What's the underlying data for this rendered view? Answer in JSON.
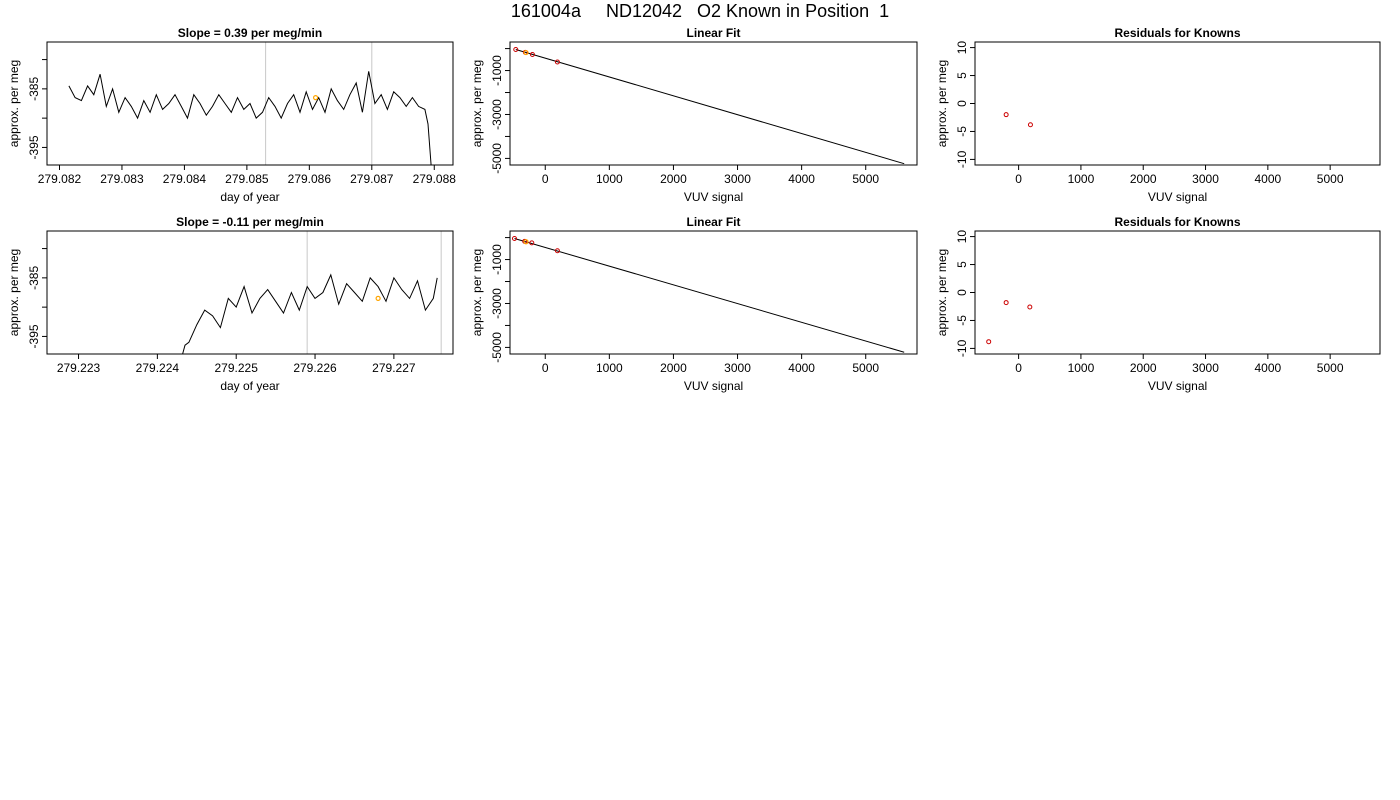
{
  "page": {
    "title": "161004a     ND12042   O2 Known in Position  1"
  },
  "colors": {
    "line": "#000000",
    "vline": "#c8c8c8",
    "point": "#cc0000",
    "accent": "#ffa500",
    "frame": "#000000"
  },
  "chart_data": [
    {
      "type": "line",
      "panel": "row1-timeseries",
      "title": "Slope =  0.39  per meg/min",
      "xlabel": "day of year",
      "ylabel": "approx. per meg",
      "xlim": [
        279.0818,
        279.0883
      ],
      "ylim": [
        -398,
        -377
      ],
      "xticks": [
        "279.082",
        "279.083",
        "279.084",
        "279.085",
        "279.086",
        "279.087",
        "279.088"
      ],
      "xtick_values": [
        279.082,
        279.083,
        279.084,
        279.085,
        279.086,
        279.087,
        279.088
      ],
      "yticks": [
        "-395",
        "-385"
      ],
      "ytick_values": [
        -395,
        -385
      ],
      "extra_y_ticks": [
        -380,
        -390
      ],
      "vlines": [
        279.0853,
        279.087
      ],
      "accent_point": {
        "x": 279.0861,
        "y": -386.5
      },
      "series": [
        {
          "x": [
            279.08215,
            279.08225,
            279.08235,
            279.08245,
            279.08255,
            279.08265,
            279.08275,
            279.08285,
            279.08295,
            279.08305,
            279.08315,
            279.08325,
            279.08335,
            279.08345,
            279.08355,
            279.08365,
            279.08375,
            279.08385,
            279.08395,
            279.08405,
            279.08415,
            279.08425,
            279.08435,
            279.08445,
            279.08455,
            279.08465,
            279.08475,
            279.08485,
            279.08495,
            279.08505,
            279.08515,
            279.08525,
            279.08535,
            279.08545,
            279.08555,
            279.08565,
            279.08575,
            279.08585,
            279.08595,
            279.08605,
            279.08615,
            279.08625,
            279.08635,
            279.08645,
            279.08655,
            279.08665,
            279.08675,
            279.08685,
            279.08695,
            279.08705,
            279.08715,
            279.08725,
            279.08735,
            279.08745,
            279.08755,
            279.08765,
            279.08775,
            279.08785,
            279.0879,
            279.08795
          ],
          "y": [
            -384.5,
            -386.5,
            -387,
            -384.5,
            -386,
            -382.5,
            -388,
            -385,
            -389,
            -386.5,
            -388,
            -390,
            -387,
            -389,
            -386,
            -388.5,
            -387.5,
            -386,
            -388,
            -390,
            -386,
            -387.5,
            -389.5,
            -388,
            -386,
            -387.5,
            -389,
            -386.5,
            -388.5,
            -387.5,
            -390,
            -389,
            -386.5,
            -388,
            -390,
            -387.5,
            -386,
            -389,
            -385.5,
            -388.5,
            -386.5,
            -389,
            -385,
            -387,
            -388.5,
            -386,
            -384,
            -389,
            -382,
            -387.5,
            -386,
            -388.5,
            -385.5,
            -386.5,
            -388,
            -386.5,
            -388,
            -388.5,
            -391,
            -398
          ]
        }
      ]
    },
    {
      "type": "scatter",
      "panel": "row1-linearfit",
      "title": "Linear Fit",
      "xlabel": "VUV signal",
      "ylabel": "approx. per meg",
      "xlim": [
        -550,
        5800
      ],
      "ylim": [
        -5300,
        300
      ],
      "xticks": [
        "0",
        "1000",
        "2000",
        "3000",
        "4000",
        "5000"
      ],
      "xtick_values": [
        0,
        1000,
        2000,
        3000,
        4000,
        5000
      ],
      "yticks": [
        "-5000",
        "-3000",
        "-1000"
      ],
      "ytick_values": [
        -5000,
        -3000,
        -1000
      ],
      "extra_y_ticks": [
        -4000,
        -2000,
        0
      ],
      "fit_line": {
        "x": [
          -460,
          5600
        ],
        "y": [
          -40,
          -5240
        ]
      },
      "points": {
        "x": [
          -460,
          -310,
          -200,
          190
        ],
        "y": [
          -40,
          -170,
          -270,
          -610
        ]
      },
      "accent_point": {
        "x": -300,
        "y": -180
      }
    },
    {
      "type": "scatter",
      "panel": "row1-residuals",
      "title": "Residuals for Knowns",
      "xlabel": "VUV signal",
      "ylabel": "approx. per meg",
      "xlim": [
        -700,
        5800
      ],
      "ylim": [
        -11,
        11
      ],
      "xticks": [
        "0",
        "1000",
        "2000",
        "3000",
        "4000",
        "5000"
      ],
      "xtick_values": [
        0,
        1000,
        2000,
        3000,
        4000,
        5000
      ],
      "yticks": [
        "-10",
        "-5",
        "0",
        "5",
        "10"
      ],
      "ytick_values": [
        -10,
        -5,
        0,
        5,
        10
      ],
      "points": {
        "x": [
          -200,
          190
        ],
        "y": [
          -2,
          -3.8
        ]
      }
    },
    {
      "type": "line",
      "panel": "row2-timeseries",
      "title": "Slope =  -0.11  per meg/min",
      "xlabel": "day of year",
      "ylabel": "approx. per meg",
      "xlim": [
        279.2226,
        279.22775
      ],
      "ylim": [
        -398,
        -377
      ],
      "xticks": [
        "279.223",
        "279.224",
        "279.225",
        "279.226",
        "279.227"
      ],
      "xtick_values": [
        279.223,
        279.224,
        279.225,
        279.226,
        279.227
      ],
      "yticks": [
        "-395",
        "-385"
      ],
      "ytick_values": [
        -395,
        -385
      ],
      "extra_y_ticks": [
        -380,
        -390
      ],
      "vlines": [
        279.2259,
        279.2276
      ],
      "accent_point": {
        "x": 279.2268,
        "y": -388.5
      },
      "series": [
        {
          "x": [
            279.2243,
            279.22435,
            279.2244,
            279.2245,
            279.2246,
            279.2247,
            279.2248,
            279.2249,
            279.225,
            279.2251,
            279.2252,
            279.2253,
            279.2254,
            279.2255,
            279.2256,
            279.2257,
            279.2258,
            279.2259,
            279.226,
            279.2261,
            279.2262,
            279.2263,
            279.2264,
            279.2265,
            279.2266,
            279.2267,
            279.2268,
            279.2269,
            279.227,
            279.2271,
            279.2272,
            279.2273,
            279.2274,
            279.2275,
            279.22755
          ],
          "y": [
            -399,
            -396.5,
            -396,
            -393,
            -390.5,
            -391.5,
            -393.5,
            -388.5,
            -390,
            -386.5,
            -391,
            -388.5,
            -387,
            -389,
            -391,
            -387.5,
            -390.5,
            -386.5,
            -388.5,
            -387.5,
            -384.5,
            -389.5,
            -386,
            -387.5,
            -389,
            -385,
            -386.5,
            -389,
            -385,
            -387,
            -388.5,
            -385.5,
            -390.5,
            -388.5,
            -385
          ]
        }
      ]
    },
    {
      "type": "scatter",
      "panel": "row2-linearfit",
      "title": "Linear Fit",
      "xlabel": "VUV signal",
      "ylabel": "approx. per meg",
      "xlim": [
        -550,
        5800
      ],
      "ylim": [
        -5300,
        300
      ],
      "xticks": [
        "0",
        "1000",
        "2000",
        "3000",
        "4000",
        "5000"
      ],
      "xtick_values": [
        0,
        1000,
        2000,
        3000,
        4000,
        5000
      ],
      "yticks": [
        "-5000",
        "-3000",
        "-1000"
      ],
      "ytick_values": [
        -5000,
        -3000,
        -1000
      ],
      "extra_y_ticks": [
        -4000,
        -2000,
        0
      ],
      "fit_line": {
        "x": [
          -480,
          5600
        ],
        "y": [
          -40,
          -5220
        ]
      },
      "points": {
        "x": [
          -480,
          -320,
          -210,
          190
        ],
        "y": [
          -40,
          -170,
          -240,
          -600
        ]
      },
      "accent_point": {
        "x": -300,
        "y": -190
      }
    },
    {
      "type": "scatter",
      "panel": "row2-residuals",
      "title": "Residuals for Knowns",
      "xlabel": "VUV signal",
      "ylabel": "approx. per meg",
      "xlim": [
        -700,
        5800
      ],
      "ylim": [
        -11,
        11
      ],
      "xticks": [
        "0",
        "1000",
        "2000",
        "3000",
        "4000",
        "5000"
      ],
      "xtick_values": [
        0,
        1000,
        2000,
        3000,
        4000,
        5000
      ],
      "yticks": [
        "-10",
        "-5",
        "0",
        "5",
        "10"
      ],
      "ytick_values": [
        -10,
        -5,
        0,
        5,
        10
      ],
      "points": {
        "x": [
          -480,
          -200,
          180
        ],
        "y": [
          -8.8,
          -1.8,
          -2.6
        ]
      }
    }
  ]
}
